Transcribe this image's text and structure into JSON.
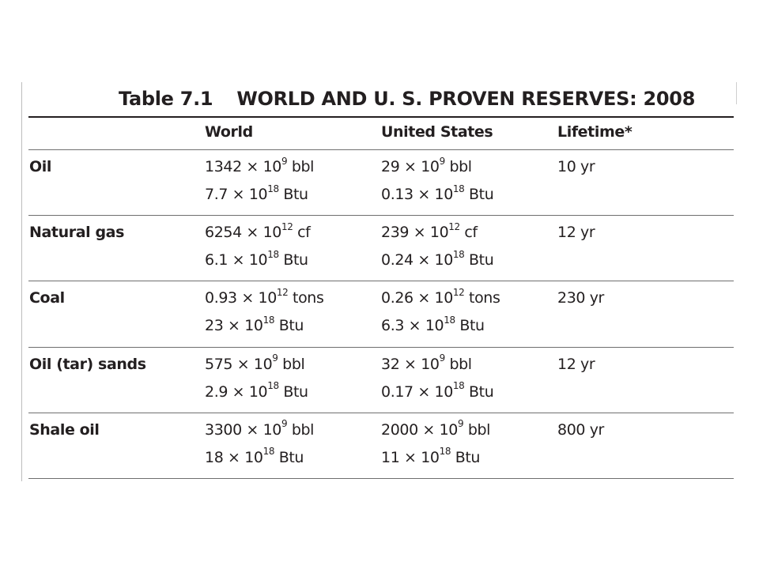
{
  "table": {
    "number": "Table 7.1",
    "title": "WORLD AND U. S. PROVEN RESERVES: 2008",
    "columns": [
      "World",
      "United States",
      "Lifetime*"
    ],
    "rows": [
      {
        "label": "Oil",
        "world": [
          {
            "mantissa": "1342",
            "exponent": "9",
            "unit": "bbl"
          },
          {
            "mantissa": "7.7",
            "exponent": "18",
            "unit": "Btu"
          }
        ],
        "us": [
          {
            "mantissa": "29",
            "exponent": "9",
            "unit": "bbl"
          },
          {
            "mantissa": "0.13",
            "exponent": "18",
            "unit": "Btu"
          }
        ],
        "lifetime": "10 yr"
      },
      {
        "label": "Natural gas",
        "world": [
          {
            "mantissa": "6254",
            "exponent": "12",
            "unit": "cf"
          },
          {
            "mantissa": "6.1",
            "exponent": "18",
            "unit": "Btu"
          }
        ],
        "us": [
          {
            "mantissa": "239",
            "exponent": "12",
            "unit": "cf"
          },
          {
            "mantissa": "0.24",
            "exponent": "18",
            "unit": "Btu"
          }
        ],
        "lifetime": "12 yr"
      },
      {
        "label": "Coal",
        "world": [
          {
            "mantissa": "0.93",
            "exponent": "12",
            "unit": "tons"
          },
          {
            "mantissa": "23",
            "exponent": "18",
            "unit": "Btu"
          }
        ],
        "us": [
          {
            "mantissa": "0.26",
            "exponent": "12",
            "unit": "tons"
          },
          {
            "mantissa": "6.3",
            "exponent": "18",
            "unit": "Btu"
          }
        ],
        "lifetime": "230 yr"
      },
      {
        "label": "Oil (tar) sands",
        "world": [
          {
            "mantissa": "575",
            "exponent": "9",
            "unit": "bbl"
          },
          {
            "mantissa": "2.9",
            "exponent": "18",
            "unit": "Btu"
          }
        ],
        "us": [
          {
            "mantissa": "32",
            "exponent": "9",
            "unit": "bbl"
          },
          {
            "mantissa": "0.17",
            "exponent": "18",
            "unit": "Btu"
          }
        ],
        "lifetime": "12 yr"
      },
      {
        "label": "Shale oil",
        "world": [
          {
            "mantissa": "3300",
            "exponent": "9",
            "unit": "bbl"
          },
          {
            "mantissa": "18",
            "exponent": "18",
            "unit": "Btu"
          }
        ],
        "us": [
          {
            "mantissa": "2000",
            "exponent": "9",
            "unit": "bbl"
          },
          {
            "mantissa": "11",
            "exponent": "18",
            "unit": "Btu"
          }
        ],
        "lifetime": "800 yr"
      }
    ]
  }
}
